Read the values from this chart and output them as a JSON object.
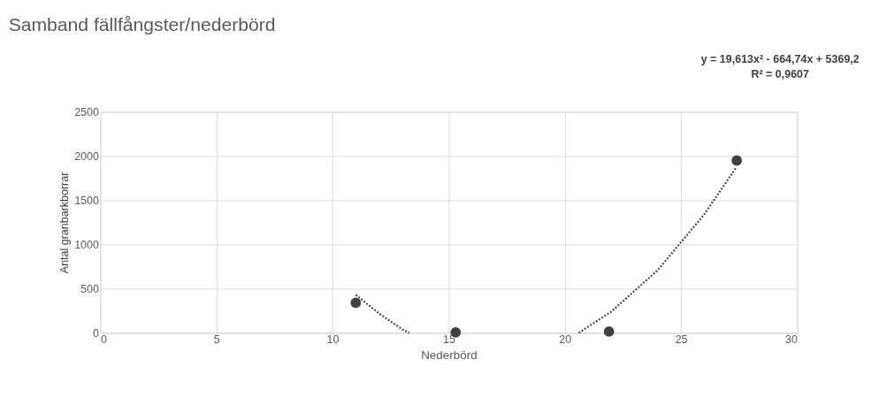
{
  "chart_data": {
    "type": "scatter",
    "title": "Samband fällfångster/nederbörd",
    "xlabel": "Nederbörd",
    "ylabel": "Antal granbarkborrar",
    "annotations": [
      "y = 19,613x² - 664,74x + 5369,2",
      "R² = 0,9607"
    ],
    "x": [
      11,
      15.3,
      21.9,
      27.4
    ],
    "series": [
      {
        "color": "#404040",
        "values": [
          340,
          5,
          15,
          1950
        ],
        "marker": "circle"
      },
      {
        "type": "line",
        "color": "#404040",
        "line_style": "dotted",
        "x": [
          11,
          12,
          13,
          13.3,
          17,
          20.6,
          22,
          24,
          26,
          27.4
        ],
        "values": [
          430,
          220,
          40,
          0,
          null,
          0,
          240,
          710,
          1340,
          1880
        ]
      }
    ],
    "xlim": [
      0,
      30
    ],
    "xticks": [
      0,
      5,
      10,
      15,
      20,
      25,
      30
    ],
    "ylim": [
      0,
      2500
    ],
    "yticks": [
      0,
      500,
      1000,
      1500,
      2000,
      2500
    ],
    "grid": true
  }
}
